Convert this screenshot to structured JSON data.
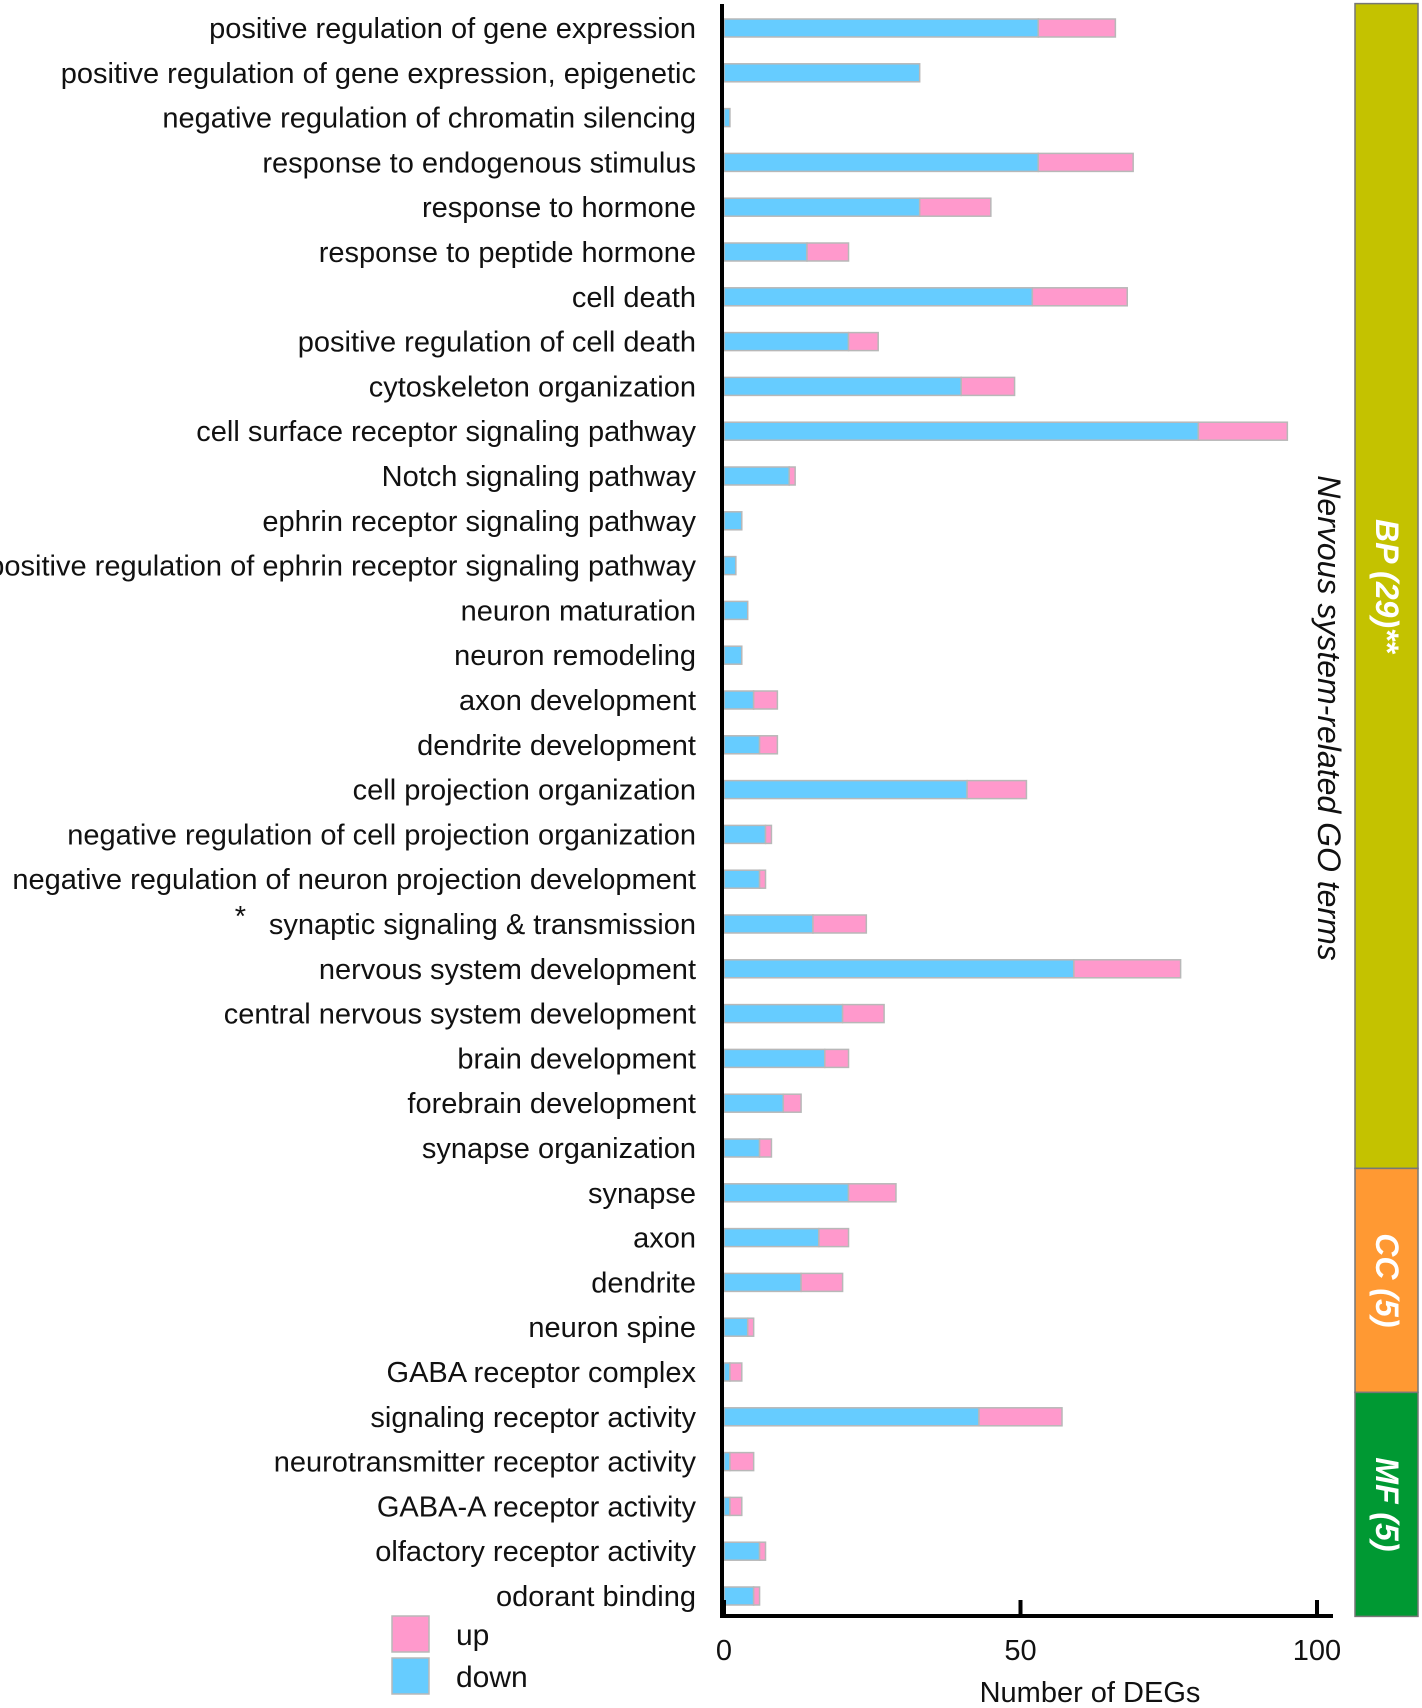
{
  "chart_data": {
    "type": "bar",
    "orientation": "horizontal",
    "stacked": true,
    "title": "",
    "xlabel": "Number of DEGs",
    "side_title": "Nervous system-related GO terms",
    "xlim": [
      0,
      100
    ],
    "xticks": [
      "0",
      "50",
      "100"
    ],
    "categories": [
      "positive regulation of gene expression",
      "positive regulation of gene expression, epigenetic",
      "negative regulation of chromatin silencing",
      "response to endogenous stimulus",
      "response to hormone",
      "response to peptide hormone",
      "cell death",
      "positive regulation of cell death",
      "cytoskeleton organization",
      "cell surface receptor signaling pathway",
      "Notch signaling pathway",
      "ephrin receptor signaling pathway",
      "positive regulation of ephrin receptor signaling pathway",
      "neuron maturation",
      "neuron remodeling",
      "axon development",
      "dendrite development",
      "cell projection organization",
      "negative regulation of cell projection organization",
      "negative regulation of neuron projection development",
      "synaptic signaling & transmission",
      "nervous system development",
      "central nervous system development",
      "brain development",
      "forebrain development",
      "synapse organization",
      "synapse",
      "axon",
      "dendrite",
      "neuron spine",
      "GABA receptor complex",
      "signaling receptor activity",
      "neurotransmitter receptor activity",
      "GABA-A receptor activity",
      "olfactory receptor activity",
      "odorant binding"
    ],
    "asterisk_mark": "*",
    "asterisk_index": 20,
    "series": [
      {
        "name": "down",
        "color": "#66ccff",
        "values": [
          53,
          33,
          1,
          53,
          33,
          14,
          52,
          21,
          40,
          80,
          11,
          3,
          2,
          4,
          3,
          5,
          6,
          41,
          7,
          6,
          15,
          59,
          20,
          17,
          10,
          6,
          21,
          16,
          13,
          4,
          1,
          43,
          1,
          1,
          6,
          5
        ]
      },
      {
        "name": "up",
        "color": "#ff99cc",
        "values": [
          13,
          0,
          0,
          16,
          12,
          7,
          16,
          5,
          9,
          15,
          1,
          0,
          0,
          0,
          0,
          4,
          3,
          10,
          1,
          1,
          9,
          18,
          7,
          4,
          3,
          2,
          8,
          5,
          7,
          1,
          2,
          14,
          4,
          2,
          1,
          1
        ]
      }
    ],
    "legend": [
      {
        "label": "up",
        "color": "#ff99cc"
      },
      {
        "label": "down",
        "color": "#66ccff"
      }
    ],
    "groups": [
      {
        "label": "BP (29)**",
        "start": 0,
        "end": 25,
        "color": "#c4c200"
      },
      {
        "label": "CC (5)",
        "start": 26,
        "end": 30,
        "color": "#ff9933"
      },
      {
        "label": "MF (5)",
        "start": 31,
        "end": 35,
        "color": "#009933"
      }
    ]
  }
}
